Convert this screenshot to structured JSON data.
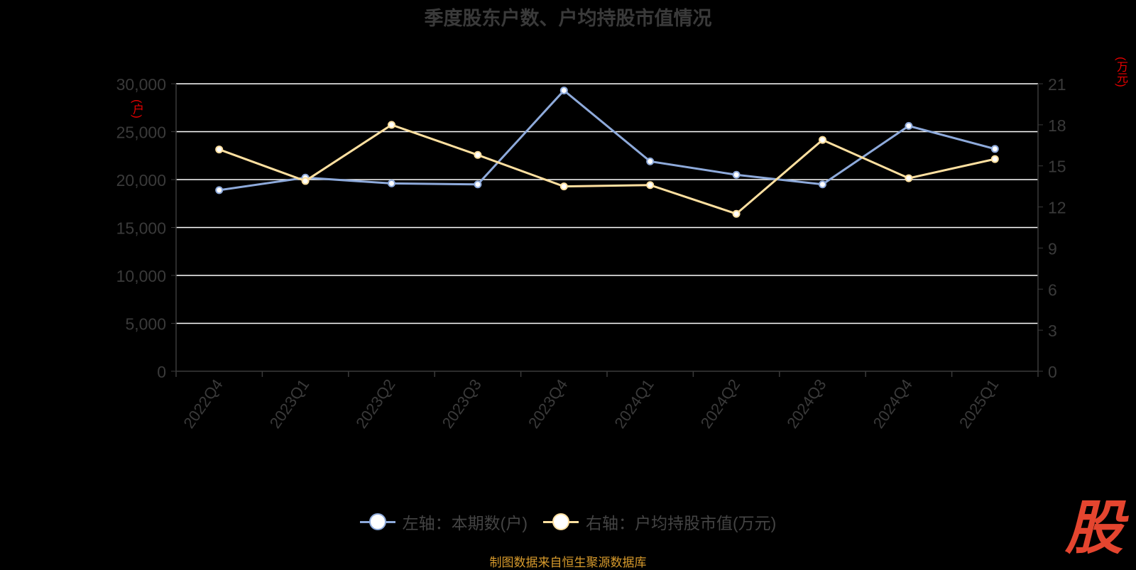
{
  "title": "季度股东户数、户均持股市值情况",
  "left_unit": "(户)",
  "right_unit": "(万元)",
  "legend": {
    "left_label": "左轴：本期数(户)",
    "right_label": "右轴：户均持股市值(万元)"
  },
  "source": "制图数据来自恒生聚源数据库",
  "logo_text": "股",
  "colors": {
    "left_series": "#8eaadb",
    "right_series": "#ffe0a0",
    "grid": "#ffffff",
    "axis_text": "#3a3a3a",
    "unit_text": "#ee0000"
  },
  "chart_data": {
    "type": "line",
    "categories": [
      "2022Q4",
      "2023Q1",
      "2023Q2",
      "2023Q3",
      "2023Q4",
      "2024Q1",
      "2024Q2",
      "2024Q3",
      "2024Q4",
      "2025Q1"
    ],
    "series": [
      {
        "name": "左轴：本期数(户)",
        "axis": "left",
        "values": [
          18900,
          20200,
          19600,
          19500,
          29300,
          21900,
          20500,
          19500,
          25600,
          23200
        ]
      },
      {
        "name": "右轴：户均持股市值(万元)",
        "axis": "right",
        "values": [
          16.2,
          13.9,
          18.0,
          15.8,
          13.5,
          13.6,
          11.5,
          16.9,
          14.1,
          15.5
        ]
      }
    ],
    "y_left": {
      "min": 0,
      "max": 30000,
      "ticks": [
        0,
        5000,
        10000,
        15000,
        20000,
        25000,
        30000
      ],
      "tick_labels": [
        "0",
        "5,000",
        "10,000",
        "15,000",
        "20,000",
        "25,000",
        "30,000"
      ]
    },
    "y_right": {
      "min": 0,
      "max": 21,
      "ticks": [
        0,
        3,
        6,
        9,
        12,
        15,
        18,
        21
      ],
      "tick_labels": [
        "0",
        "3",
        "6",
        "9",
        "12",
        "15",
        "18",
        "21"
      ]
    },
    "grid": true,
    "legend_position": "bottom"
  }
}
